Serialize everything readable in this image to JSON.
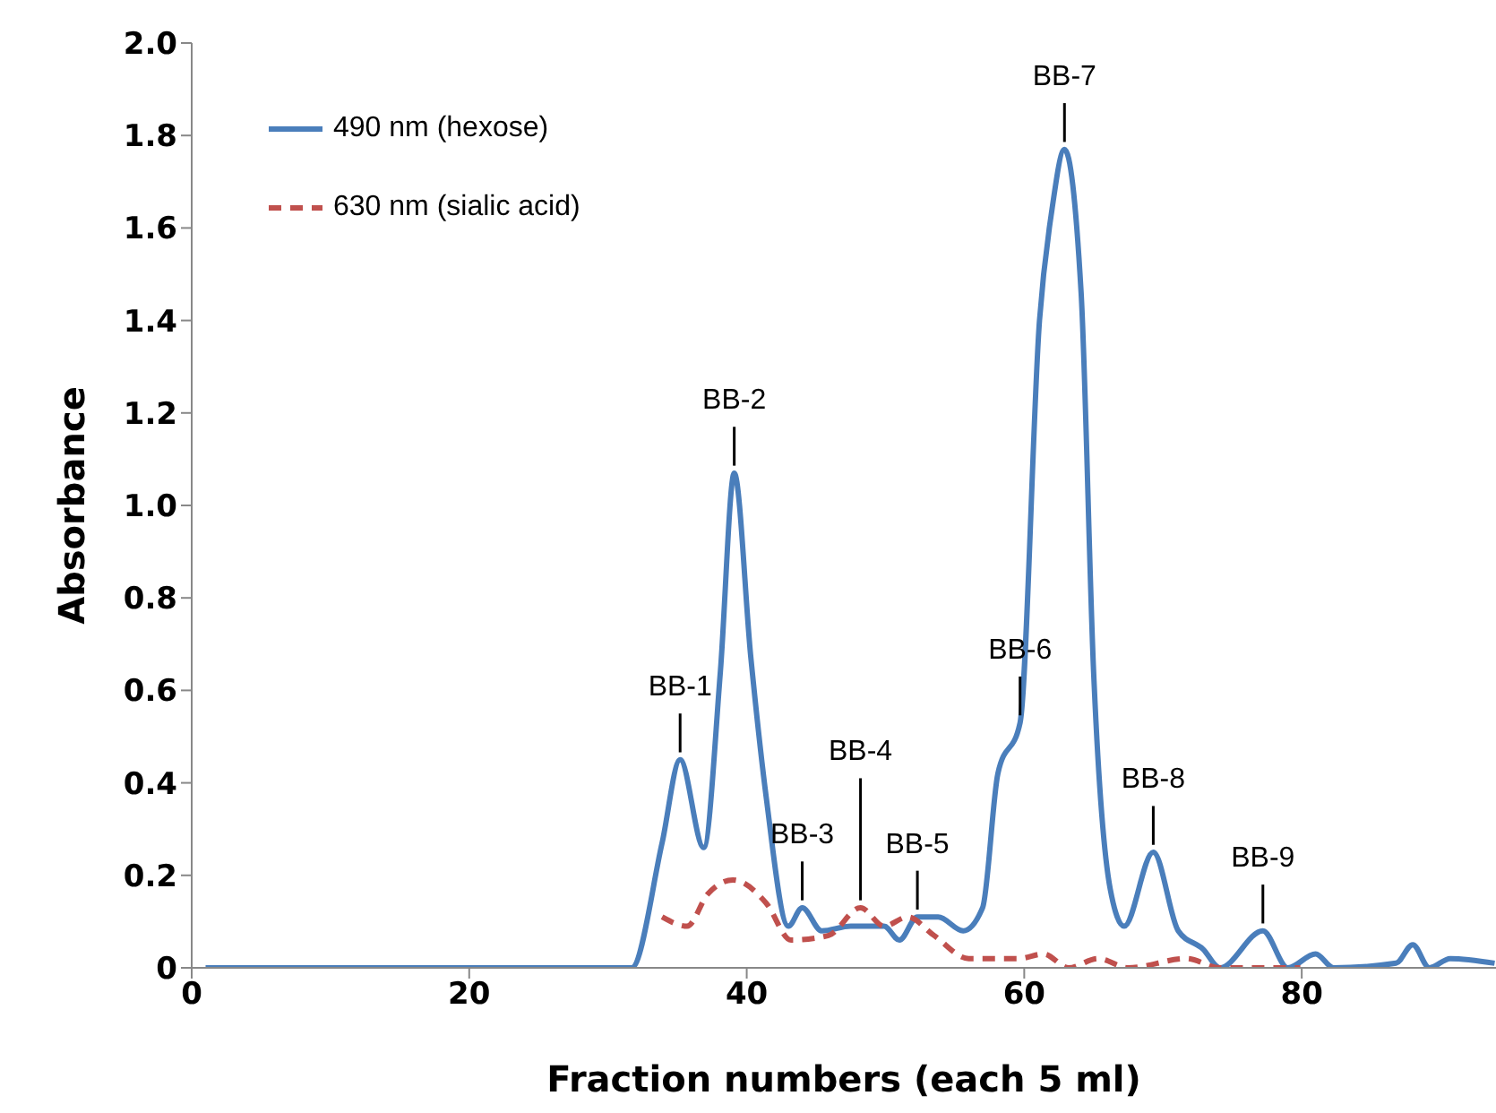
{
  "chart_data": {
    "type": "line",
    "xlabel": "Fraction numbers (each 5 ml)",
    "ylabel": "Absorbance",
    "xlim": [
      0,
      94
    ],
    "xticks": [
      0,
      20,
      40,
      60,
      80
    ],
    "ylim": [
      0,
      2.0
    ],
    "yticks": [
      0,
      0.2,
      0.4,
      0.6,
      0.8,
      {
        "value": 1.0,
        "label": "1.0"
      },
      1.2,
      1.4,
      1.6,
      1.8,
      {
        "value": 2.0,
        "label": "2.0"
      }
    ],
    "grid": false,
    "legend": "top left",
    "marker": "none",
    "series": [
      {
        "name": "490 nm (hexose)",
        "color": "#4a7ebb",
        "line_style": "solid",
        "x": [
          1,
          31.7,
          33.9,
          35.2,
          36.9,
          38.1,
          39.1,
          40.3,
          41.4,
          43.0,
          44.0,
          45.4,
          47.5,
          49.9,
          51.0,
          52.3,
          53.8,
          55.6,
          57.0,
          58.1,
          59.7,
          61.1,
          62.0,
          62.9,
          64.1,
          65.0,
          66.2,
          67.2,
          69.3,
          71.1,
          72.9,
          74.1,
          77.2,
          79.0,
          81.0,
          82.3,
          86.8,
          88.0,
          89.2,
          90.7,
          93.9
        ],
        "values": [
          0,
          0,
          0.27,
          0.45,
          0.26,
          0.64,
          1.07,
          0.67,
          0.37,
          0.09,
          0.13,
          0.08,
          0.09,
          0.09,
          0.06,
          0.11,
          0.11,
          0.08,
          0.13,
          0.42,
          0.53,
          1.4,
          1.64,
          1.77,
          1.46,
          0.64,
          0.17,
          0.09,
          0.25,
          0.08,
          0.04,
          0,
          0.08,
          0,
          0.03,
          0,
          0.01,
          0.05,
          0,
          0.02,
          0.01
        ]
      },
      {
        "name": "630 nm (sialic acid)",
        "color": "#c0504d",
        "line_style": "dashed",
        "x": [
          33.9,
          35.7,
          37.2,
          39.0,
          41.4,
          43.2,
          45.9,
          48.2,
          49.9,
          51.6,
          53.5,
          56.0,
          59.6,
          61.4,
          63.2,
          65.3,
          67.5,
          71.7,
          74.1,
          79.9
        ],
        "values": [
          0.11,
          0.09,
          0.16,
          0.19,
          0.14,
          0.06,
          0.07,
          0.13,
          0.09,
          0.11,
          0.07,
          0.02,
          0.02,
          0.03,
          0,
          0.02,
          0,
          0.02,
          0,
          0
        ]
      }
    ],
    "annotations": [
      {
        "text": "BB-1",
        "x": 35.2,
        "y": 0.45
      },
      {
        "text": "BB-2",
        "x": 39.1,
        "y": 1.07
      },
      {
        "text": "BB-3",
        "x": 44.0,
        "y": 0.13
      },
      {
        "text": "BB-4",
        "x": 48.2,
        "y": 0.13
      },
      {
        "text": "BB-5",
        "x": 52.3,
        "y": 0.11
      },
      {
        "text": "BB-6",
        "x": 59.7,
        "y": 0.53
      },
      {
        "text": "BB-7",
        "x": 62.9,
        "y": 1.77
      },
      {
        "text": "BB-8",
        "x": 69.3,
        "y": 0.25
      },
      {
        "text": "BB-9",
        "x": 77.2,
        "y": 0.08
      }
    ]
  }
}
